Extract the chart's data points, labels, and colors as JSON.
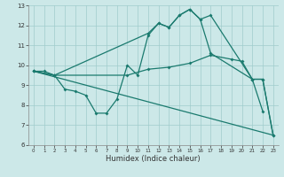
{
  "xlabel": "Humidex (Indice chaleur)",
  "bg_color": "#cce8e8",
  "line_color": "#1a7a6e",
  "grid_color": "#a0cccc",
  "xlim": [
    -0.5,
    23.5
  ],
  "ylim": [
    6,
    13
  ],
  "xticks": [
    0,
    1,
    2,
    3,
    4,
    5,
    6,
    7,
    8,
    9,
    10,
    11,
    12,
    13,
    14,
    15,
    16,
    17,
    18,
    19,
    20,
    21,
    22,
    23
  ],
  "yticks": [
    6,
    7,
    8,
    9,
    10,
    11,
    12,
    13
  ],
  "lines": [
    {
      "x": [
        0,
        1,
        2,
        3,
        4,
        5,
        6,
        7,
        8,
        9,
        10,
        11,
        12,
        13,
        14,
        15,
        16,
        17,
        21,
        22
      ],
      "y": [
        9.7,
        9.7,
        9.5,
        8.8,
        8.7,
        8.5,
        7.6,
        7.6,
        8.3,
        10.0,
        9.5,
        11.5,
        12.1,
        11.9,
        12.5,
        12.8,
        12.3,
        12.5,
        9.3,
        7.7
      ],
      "marker": true
    },
    {
      "x": [
        0,
        2,
        11,
        12,
        13,
        14,
        15,
        16,
        17,
        21,
        22,
        23
      ],
      "y": [
        9.7,
        9.5,
        11.6,
        12.1,
        11.9,
        12.5,
        12.8,
        12.3,
        10.6,
        9.3,
        9.3,
        6.5
      ],
      "marker": true
    },
    {
      "x": [
        0,
        23
      ],
      "y": [
        9.7,
        6.5
      ],
      "marker": false
    },
    {
      "x": [
        0,
        2,
        9,
        11,
        13,
        15,
        17,
        19,
        20,
        21,
        22,
        23
      ],
      "y": [
        9.7,
        9.5,
        9.5,
        9.8,
        9.9,
        10.1,
        10.5,
        10.3,
        10.2,
        9.3,
        9.3,
        6.5
      ],
      "marker": true
    }
  ]
}
